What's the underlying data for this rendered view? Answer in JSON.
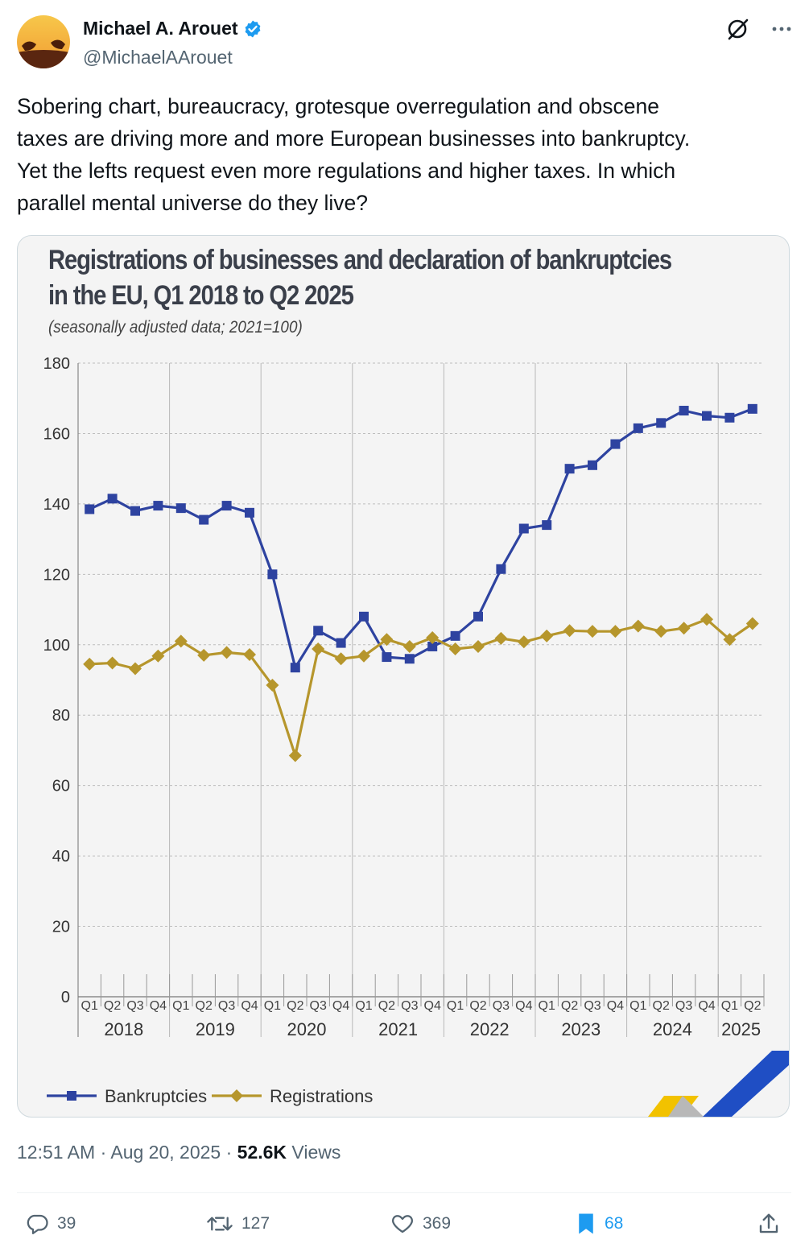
{
  "author": {
    "name": "Michael A. Arouet",
    "handle": "@MichaelAArouet"
  },
  "tweet_lines": [
    "Sobering chart, bureaucracy, grotesque overregulation and obscene",
    "taxes are driving more and more European businesses into bankruptcy.",
    "Yet the lefts request even more regulations and higher taxes. In which",
    "parallel mental universe do they live?"
  ],
  "chart_data": {
    "type": "line",
    "title_lines": [
      "Registrations of businesses and declaration of bankruptcies",
      "in the EU, Q1 2018 to Q2 2025"
    ],
    "subtitle": "(seasonally adjusted data; 2021=100)",
    "quarters": [
      "Q1",
      "Q2",
      "Q3",
      "Q4",
      "Q1",
      "Q2",
      "Q3",
      "Q4",
      "Q1",
      "Q2",
      "Q3",
      "Q4",
      "Q1",
      "Q2",
      "Q3",
      "Q4",
      "Q1",
      "Q2",
      "Q3",
      "Q4",
      "Q1",
      "Q2",
      "Q3",
      "Q4",
      "Q1",
      "Q2",
      "Q3",
      "Q4",
      "Q1",
      "Q2"
    ],
    "years": [
      "2018",
      "2019",
      "2020",
      "2021",
      "2022",
      "2023",
      "2024",
      "2025"
    ],
    "year_spans": [
      4,
      4,
      4,
      4,
      4,
      4,
      4,
      2
    ],
    "ylim": [
      0,
      180
    ],
    "yticks": [
      "0",
      "20",
      "40",
      "60",
      "80",
      "100",
      "120",
      "140",
      "160",
      "180"
    ],
    "series": [
      {
        "name": "Bankruptcies",
        "color": "#2e43a0",
        "marker": "square",
        "values": [
          138.5,
          141.5,
          138,
          139.5,
          138.8,
          135.5,
          139.5,
          137.5,
          120,
          93.5,
          104,
          100.5,
          108,
          96.5,
          96,
          99.5,
          102.5,
          108,
          121.5,
          133,
          134,
          150,
          151,
          157,
          161.5,
          163,
          166.5,
          165,
          164.5,
          167
        ]
      },
      {
        "name": "Registrations",
        "color": "#b6962c",
        "marker": "diamond",
        "values": [
          94.5,
          94.8,
          93.2,
          96.8,
          101,
          97,
          97.8,
          97.2,
          88.5,
          68.5,
          98.8,
          96,
          96.8,
          101.5,
          99.5,
          102,
          98.8,
          99.5,
          101.8,
          100.8,
          102.5,
          104,
          103.8,
          103.8,
          105.3,
          103.8,
          104.7,
          107.2,
          101.5,
          106
        ]
      }
    ],
    "legend_position": "bottom-left"
  },
  "meta": {
    "time": "12:51 AM",
    "sep1": " · ",
    "date": "Aug 20, 2025",
    "sep2": " · ",
    "views": "52.6K",
    "views_label": " Views"
  },
  "actions": {
    "replies": "39",
    "reposts": "127",
    "likes": "369",
    "bookmarks": "68"
  },
  "colors": {
    "accent": "#1d9bf0",
    "muted": "#536471"
  }
}
